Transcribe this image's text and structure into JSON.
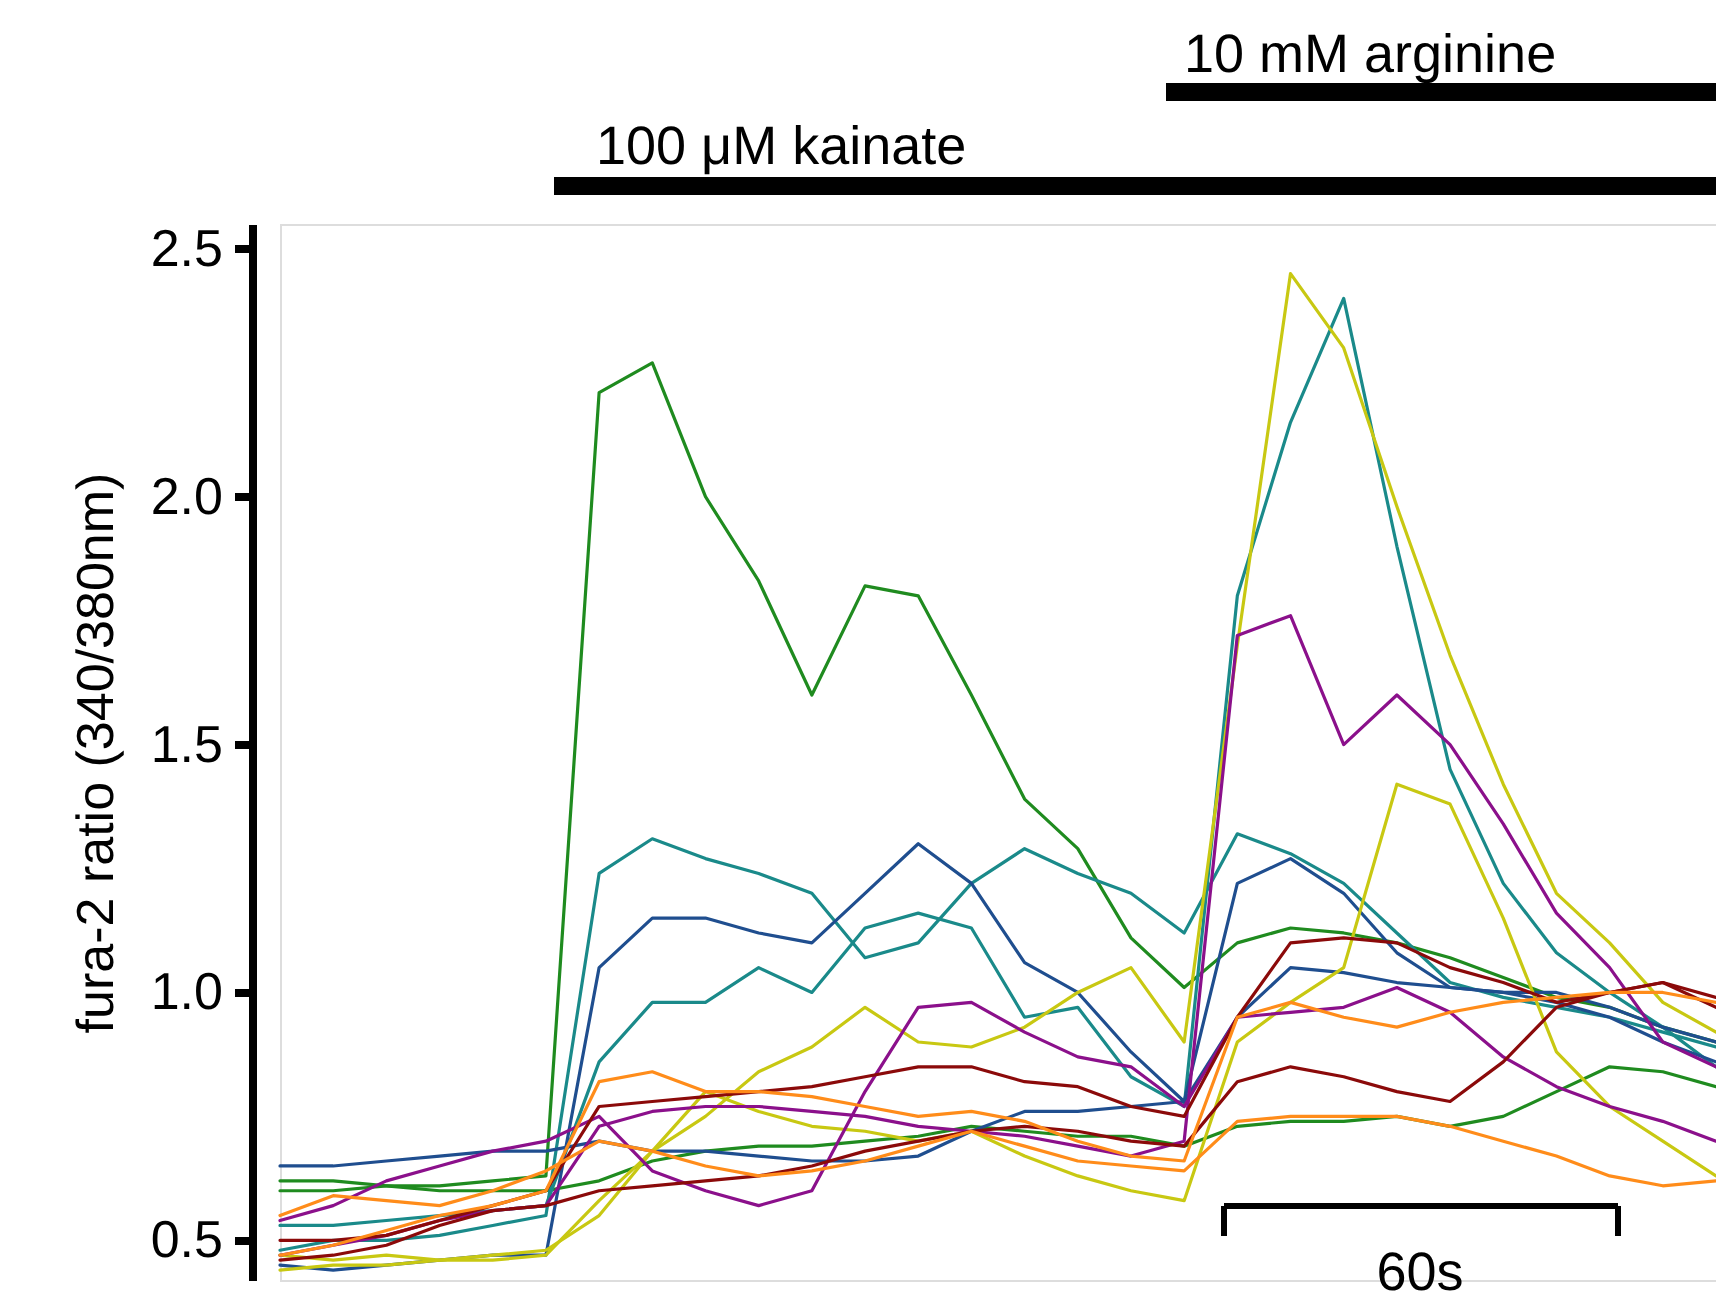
{
  "chart_data": {
    "type": "line",
    "ylabel": "fura-2 ratio (340/380nm)",
    "categories": [
      null,
      null,
      null,
      null,
      null,
      null,
      null,
      null,
      null,
      null,
      null,
      null,
      null,
      null,
      null,
      null,
      null,
      null,
      null,
      null,
      null,
      null,
      null,
      null,
      null,
      null,
      null,
      null
    ],
    "ylim": [
      0.42,
      2.55
    ],
    "yticks": [
      {
        "value": 0.5,
        "label": "0.5"
      },
      {
        "value": 1.0,
        "label": "1.0"
      },
      {
        "value": 1.5,
        "label": "1.5"
      },
      {
        "value": 2.0,
        "label": "2.0"
      },
      {
        "value": 2.5,
        "label": "2.5"
      }
    ],
    "tick_labels": "y",
    "line_style": "solid",
    "annotations": [
      "100 μM kainate",
      "10 mM arginine",
      "60s"
    ],
    "series": [
      {
        "color": "#1f8b1f",
        "values": [
          0.6,
          0.6,
          0.61,
          0.61,
          0.62,
          0.63,
          2.21,
          2.27,
          2.0,
          1.83,
          1.6,
          1.82,
          1.8,
          1.6,
          1.39,
          1.29,
          1.11,
          1.01,
          1.1,
          1.13,
          1.12,
          1.1,
          1.07,
          1.03,
          0.99,
          0.97,
          0.93,
          0.9
        ]
      },
      {
        "color": "#1f8b1f",
        "values": [
          0.62,
          0.62,
          0.61,
          0.6,
          0.6,
          0.6,
          0.62,
          0.66,
          0.68,
          0.69,
          0.69,
          0.7,
          0.71,
          0.73,
          0.72,
          0.71,
          0.71,
          0.69,
          0.73,
          0.74,
          0.74,
          0.75,
          0.73,
          0.75,
          0.8,
          0.85,
          0.84,
          0.81
        ]
      },
      {
        "color": "#1a8a8a",
        "values": [
          0.48,
          0.5,
          0.5,
          0.51,
          0.53,
          0.55,
          1.24,
          1.31,
          1.27,
          1.24,
          1.2,
          1.07,
          1.1,
          1.22,
          1.29,
          1.24,
          1.2,
          1.12,
          1.32,
          1.28,
          1.22,
          1.12,
          1.02,
          0.99,
          0.97,
          0.95,
          0.92,
          0.89
        ]
      },
      {
        "color": "#1a8a8a",
        "values": [
          0.53,
          0.53,
          0.54,
          0.55,
          0.56,
          0.57,
          0.86,
          0.98,
          0.98,
          1.05,
          1.0,
          1.13,
          1.16,
          1.13,
          0.95,
          0.97,
          0.83,
          0.77,
          1.8,
          2.15,
          2.4,
          1.9,
          1.45,
          1.22,
          1.08,
          1.0,
          0.93,
          0.85
        ]
      },
      {
        "color": "#1f4e8f",
        "values": [
          0.45,
          0.44,
          0.45,
          0.46,
          0.47,
          0.47,
          1.05,
          1.15,
          1.15,
          1.12,
          1.1,
          1.2,
          1.3,
          1.22,
          1.06,
          1.0,
          0.88,
          0.78,
          1.22,
          1.27,
          1.2,
          1.08,
          1.01,
          1.0,
          0.98,
          0.95,
          0.9,
          0.86
        ]
      },
      {
        "color": "#1f4e8f",
        "values": [
          0.65,
          0.65,
          0.66,
          0.67,
          0.68,
          0.68,
          0.7,
          0.68,
          0.68,
          0.67,
          0.66,
          0.66,
          0.67,
          0.72,
          0.76,
          0.76,
          0.77,
          0.78,
          0.95,
          1.05,
          1.04,
          1.02,
          1.01,
          1.0,
          1.0,
          0.97,
          0.93,
          0.9
        ]
      },
      {
        "color": "#c8c812",
        "values": [
          0.47,
          0.46,
          0.47,
          0.46,
          0.47,
          0.48,
          0.55,
          0.68,
          0.75,
          0.84,
          0.89,
          0.97,
          0.9,
          0.89,
          0.93,
          1.0,
          1.05,
          0.9,
          1.7,
          2.45,
          2.3,
          1.98,
          1.68,
          1.42,
          1.2,
          1.1,
          0.98,
          0.92
        ]
      },
      {
        "color": "#c8c812",
        "values": [
          0.44,
          0.45,
          0.45,
          0.46,
          0.46,
          0.47,
          0.58,
          0.68,
          0.8,
          0.76,
          0.73,
          0.72,
          0.7,
          0.72,
          0.67,
          0.63,
          0.6,
          0.58,
          0.9,
          0.98,
          1.05,
          1.42,
          1.38,
          1.15,
          0.88,
          0.77,
          0.7,
          0.63
        ]
      },
      {
        "color": "#8b108b",
        "values": [
          0.47,
          0.49,
          0.51,
          0.54,
          0.56,
          0.57,
          0.73,
          0.76,
          0.77,
          0.77,
          0.76,
          0.75,
          0.73,
          0.72,
          0.71,
          0.69,
          0.67,
          0.7,
          1.72,
          1.76,
          1.5,
          1.6,
          1.5,
          1.34,
          1.16,
          1.05,
          0.9,
          0.85
        ]
      },
      {
        "color": "#8b108b",
        "values": [
          0.54,
          0.57,
          0.62,
          0.65,
          0.68,
          0.7,
          0.75,
          0.64,
          0.6,
          0.57,
          0.6,
          0.8,
          0.97,
          0.98,
          0.92,
          0.87,
          0.85,
          0.77,
          0.95,
          0.96,
          0.97,
          1.01,
          0.96,
          0.87,
          0.81,
          0.77,
          0.74,
          0.7
        ]
      },
      {
        "color": "#8b0a0a",
        "values": [
          0.5,
          0.5,
          0.51,
          0.54,
          0.57,
          0.6,
          0.77,
          0.78,
          0.79,
          0.8,
          0.81,
          0.83,
          0.85,
          0.85,
          0.82,
          0.81,
          0.77,
          0.75,
          0.95,
          1.1,
          1.11,
          1.1,
          1.05,
          1.02,
          0.98,
          1.0,
          1.02,
          0.99
        ]
      },
      {
        "color": "#8b0a0a",
        "values": [
          0.46,
          0.47,
          0.49,
          0.53,
          0.56,
          0.57,
          0.6,
          0.61,
          0.62,
          0.63,
          0.65,
          0.68,
          0.7,
          0.72,
          0.73,
          0.72,
          0.7,
          0.69,
          0.82,
          0.85,
          0.83,
          0.8,
          0.78,
          0.86,
          0.97,
          1.0,
          1.02,
          0.97
        ]
      },
      {
        "color": "#ff8c1a",
        "values": [
          0.47,
          0.49,
          0.52,
          0.55,
          0.57,
          0.6,
          0.82,
          0.84,
          0.8,
          0.8,
          0.79,
          0.77,
          0.75,
          0.76,
          0.74,
          0.7,
          0.67,
          0.66,
          0.95,
          0.98,
          0.95,
          0.93,
          0.96,
          0.98,
          0.99,
          1.0,
          1.0,
          0.98
        ]
      },
      {
        "color": "#ff8c1a",
        "values": [
          0.55,
          0.59,
          0.58,
          0.57,
          0.6,
          0.64,
          0.7,
          0.68,
          0.65,
          0.63,
          0.64,
          0.66,
          0.69,
          0.72,
          0.69,
          0.66,
          0.65,
          0.64,
          0.74,
          0.75,
          0.75,
          0.75,
          0.73,
          0.7,
          0.67,
          0.63,
          0.61,
          0.62
        ]
      }
    ]
  }
}
